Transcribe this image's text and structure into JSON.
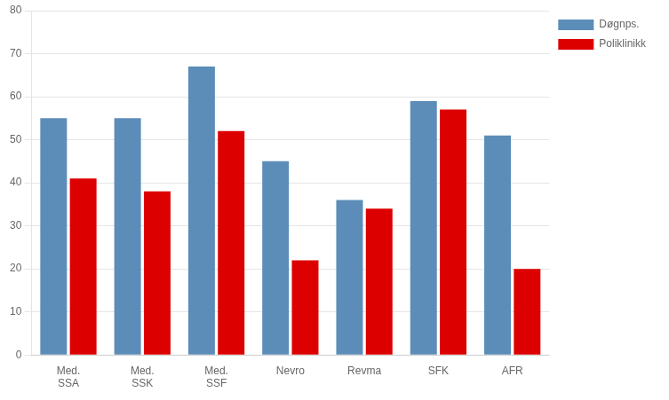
{
  "chart_data": {
    "type": "bar",
    "categories": [
      "Med.\nSSA",
      "Med.\nSSK",
      "Med.\nSSF",
      "Nevro",
      "Revma",
      "SFK",
      "AFR"
    ],
    "series": [
      {
        "name": "Døgnps.",
        "color": "#5B8DB8",
        "values": [
          55,
          55,
          67,
          45,
          36,
          59,
          51
        ]
      },
      {
        "name": "Poliklinikk",
        "color": "#DD0000",
        "values": [
          41,
          38,
          52,
          22,
          34,
          57,
          20
        ]
      }
    ],
    "ylim": [
      0,
      80
    ],
    "yticks": [
      0,
      10,
      20,
      30,
      40,
      50,
      60,
      70,
      80
    ],
    "grid": true,
    "legend": "right"
  }
}
